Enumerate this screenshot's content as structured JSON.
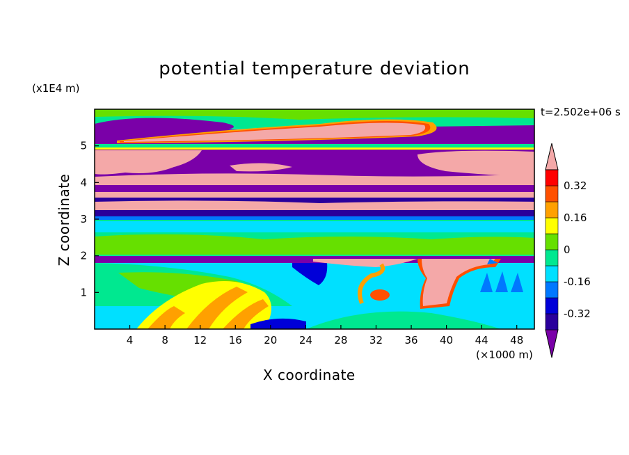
{
  "chart_data": {
    "type": "heatmap",
    "title": "potential temperature deviation",
    "xlabel": "X coordinate",
    "ylabel": "Z coordinate",
    "x_unit": "(×1000 m)",
    "z_unit": "(x1E4 m)",
    "time_label": "t=2.502e+06 s",
    "xlim": [
      0,
      50
    ],
    "ylim": [
      0,
      6
    ],
    "x_ticks": [
      4,
      8,
      12,
      16,
      20,
      24,
      28,
      32,
      36,
      40,
      44,
      48
    ],
    "y_ticks": [
      1,
      2,
      3,
      4,
      5
    ],
    "colorbar": {
      "levels": [
        -0.4,
        -0.32,
        -0.24,
        -0.16,
        -0.08,
        0,
        0.08,
        0.16,
        0.24,
        0.32,
        0.4
      ],
      "tick_labels": [
        "0.32",
        "0.16",
        "0",
        "-0.16",
        "-0.32"
      ],
      "colors": [
        "#7a00a8",
        "#2a009c",
        "#0000d8",
        "#0078ff",
        "#00e0ff",
        "#00e890",
        "#66e000",
        "#ffff00",
        "#ffa000",
        "#ff5000",
        "#ff0000",
        "#f4a8a8"
      ]
    },
    "bands": [
      {
        "z": [
          5.45,
          6.0
        ],
        "level": "cyan/green mix with purple lens at left and pink lens 16–40"
      },
      {
        "z": [
          5.05,
          5.45
        ],
        "level": "purple (< -0.40) with pink lens (> 0.40) x 6–38"
      },
      {
        "z": [
          4.4,
          5.0
        ],
        "level": "pink (> 0.40) left and right, purple centre x 14–36"
      },
      {
        "z": [
          3.9,
          4.4
        ],
        "level": "mixed pink / purple"
      },
      {
        "z": [
          3.25,
          3.9
        ],
        "level": "purple / pink stratification"
      },
      {
        "z": [
          2.0,
          3.2
        ],
        "level": "cyan / green (near 0)"
      },
      {
        "z": [
          1.8,
          1.95
        ],
        "level": "purple band"
      },
      {
        "z": [
          0.0,
          1.8
        ],
        "level": "cyan / green with yellow-orange plumes x 8–20 and pink plume x 36–44"
      }
    ]
  }
}
